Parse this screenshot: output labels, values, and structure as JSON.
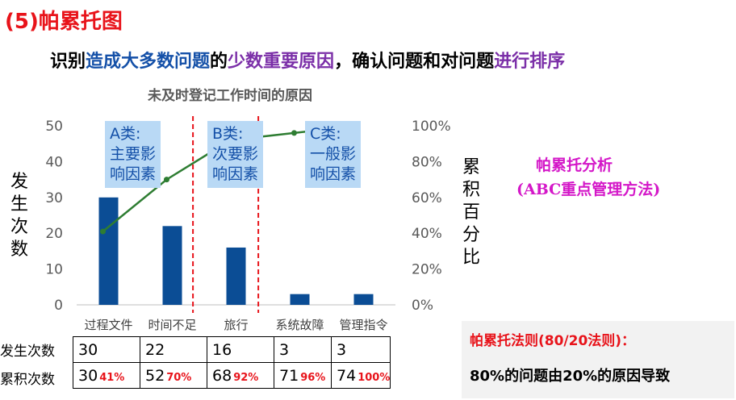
{
  "slide": {
    "section_title": "(5)帕累托图",
    "subtitle_parts": [
      {
        "text": "识别",
        "style": "black"
      },
      {
        "text": "造成大多数问题",
        "style": "blue"
      },
      {
        "text": "的",
        "style": "black"
      },
      {
        "text": "少数重要原因",
        "style": "purple"
      },
      {
        "text": "，确认问题和对问题",
        "style": "black"
      },
      {
        "text": "进行排序",
        "style": "purple"
      }
    ],
    "analysis_title_line1": "帕累托分析",
    "analysis_title_line2": "(ABC重点管理方法)",
    "rule_title": "帕累托法则(80/20法则)：",
    "rule_text": "80%的问题由20%的原因导致"
  },
  "chart_data": {
    "type": "bar",
    "title": "未及时登记工作时间的原因",
    "categories": [
      "过程文件",
      "时间不足",
      "旅行",
      "系统故障",
      "管理指令"
    ],
    "series": [
      {
        "name": "发生次数",
        "type": "bar",
        "values": [
          30,
          22,
          16,
          3,
          3
        ],
        "color": "#0b4d95"
      },
      {
        "name": "累积百分比",
        "type": "line",
        "values": [
          41,
          70,
          92,
          96,
          100
        ],
        "color": "#2e7d32"
      }
    ],
    "ylabel": "发生次数",
    "y2label": "累积百分比",
    "ylim": [
      0,
      50
    ],
    "yticks": [
      "0",
      "10",
      "20",
      "30",
      "40",
      "50"
    ],
    "y2lim": [
      0,
      100
    ],
    "y2ticks": [
      "0%",
      "20%",
      "40%",
      "60%",
      "80%",
      "100%"
    ],
    "grid": false,
    "category_groups": [
      {
        "line1": "A类:",
        "line2": "主要影",
        "line3": "响因素"
      },
      {
        "line1": "B类:",
        "line2": "次要影",
        "line3": "响因素"
      },
      {
        "line1": "C类:",
        "line2": "一般影",
        "line3": "响因素"
      }
    ]
  },
  "table": {
    "row_labels": [
      "发生次数",
      "累积次数"
    ],
    "counts": [
      "30",
      "22",
      "16",
      "3",
      "3"
    ],
    "cumulative": [
      "30",
      "52",
      "68",
      "71",
      "74"
    ],
    "cumulative_pct": [
      "41%",
      "70%",
      "92%",
      "96%",
      "100%"
    ]
  }
}
